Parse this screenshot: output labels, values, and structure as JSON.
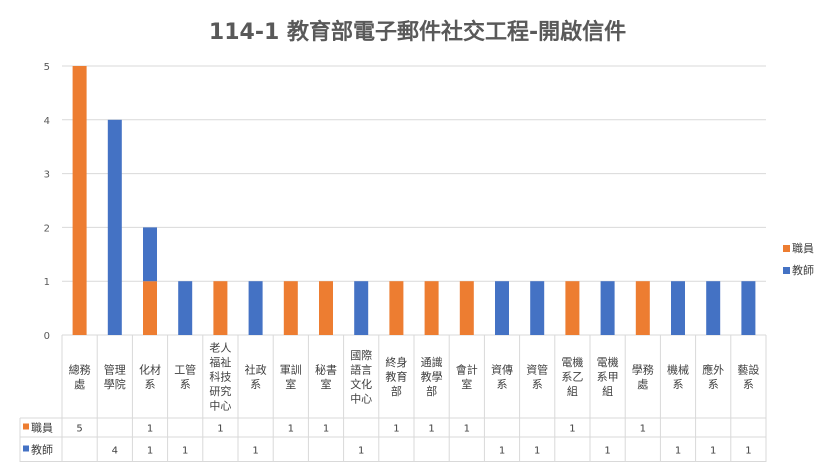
{
  "chart_data": {
    "type": "bar",
    "stacked": true,
    "title": "114-1 教育部電子郵件社交工程-開啟信件",
    "categories": [
      "總務處",
      "管理學院",
      "化材系",
      "工管系",
      "老人福祉科技研究中心",
      "社政系",
      "軍訓室",
      "秘書室",
      "國際語言文化中心",
      "終身教育部",
      "通識教學部",
      "會計室",
      "資傳系",
      "資管系",
      "電機系乙組",
      "電機系甲組",
      "學務處",
      "機械系",
      "應外系",
      "藝設系"
    ],
    "category_lines": [
      [
        "總務",
        "處"
      ],
      [
        "管理",
        "學院"
      ],
      [
        "化材",
        "系"
      ],
      [
        "工管",
        "系"
      ],
      [
        "老人",
        "福祉",
        "科技",
        "研究",
        "中心"
      ],
      [
        "社政",
        "系"
      ],
      [
        "軍訓",
        "室"
      ],
      [
        "秘書",
        "室"
      ],
      [
        "國際",
        "語言",
        "文化",
        "中心"
      ],
      [
        "終身",
        "教育",
        "部"
      ],
      [
        "通識",
        "教學",
        "部"
      ],
      [
        "會計",
        "室"
      ],
      [
        "資傳",
        "系"
      ],
      [
        "資管",
        "系"
      ],
      [
        "電機",
        "系乙",
        "組"
      ],
      [
        "電機",
        "系甲",
        "組"
      ],
      [
        "學務",
        "處"
      ],
      [
        "機械",
        "系"
      ],
      [
        "應外",
        "系"
      ],
      [
        "藝設",
        "系"
      ]
    ],
    "series": [
      {
        "name": "職員",
        "color": "#ED7D31",
        "values": [
          5,
          null,
          1,
          null,
          1,
          null,
          1,
          1,
          null,
          1,
          1,
          1,
          null,
          null,
          1,
          null,
          1,
          null,
          null,
          null
        ]
      },
      {
        "name": "教師",
        "color": "#4472C4",
        "values": [
          null,
          4,
          1,
          1,
          null,
          1,
          null,
          null,
          1,
          null,
          null,
          null,
          1,
          1,
          null,
          1,
          null,
          1,
          1,
          1
        ]
      }
    ],
    "ylim": [
      0,
      5
    ],
    "yticks": [
      0,
      1,
      2,
      3,
      4,
      5
    ],
    "grid": true,
    "legend": "right",
    "data_table": true
  }
}
